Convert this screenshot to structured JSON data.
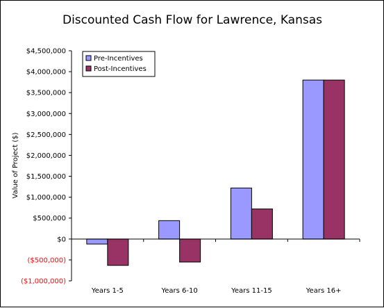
{
  "chart_data": {
    "type": "bar",
    "title": "Discounted Cash Flow for Lawrence, Kansas",
    "xlabel": "",
    "ylabel": "Value of Project ($)",
    "categories": [
      "Years 1-5",
      "Years 6-10",
      "Years 11-15",
      "Years 16+"
    ],
    "series": [
      {
        "name": "Pre-Incentives",
        "color": "#9999ff",
        "values": [
          -120000,
          440000,
          1220000,
          3800000
        ]
      },
      {
        "name": "Post-Incentives",
        "color": "#993366",
        "values": [
          -630000,
          -550000,
          720000,
          3800000
        ]
      }
    ],
    "ylim": [
      -1000000,
      4500000
    ],
    "y_ticks": [
      {
        "value": 4500000,
        "label": "$4,500,000"
      },
      {
        "value": 4000000,
        "label": "$4,000,000"
      },
      {
        "value": 3500000,
        "label": "$3,500,000"
      },
      {
        "value": 3000000,
        "label": "$3,000,000"
      },
      {
        "value": 2500000,
        "label": "$2,500,000"
      },
      {
        "value": 2000000,
        "label": "$2,000,000"
      },
      {
        "value": 1500000,
        "label": "$1,500,000"
      },
      {
        "value": 1000000,
        "label": "$1,000,000"
      },
      {
        "value": 500000,
        "label": "$500,000"
      },
      {
        "value": 0,
        "label": "$0"
      },
      {
        "value": -500000,
        "label": "($500,000)"
      },
      {
        "value": -1000000,
        "label": "($1,000,000)"
      }
    ],
    "negative_label_color": "#ff0000",
    "grid": false,
    "legend": "top-left"
  }
}
